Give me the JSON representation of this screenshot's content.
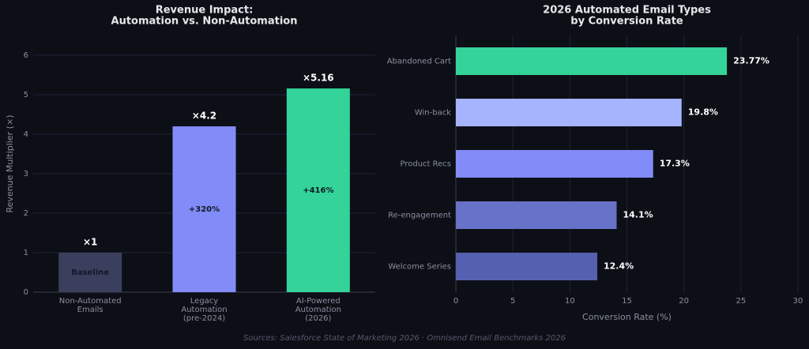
{
  "chart_data": [
    {
      "type": "bar",
      "title": [
        "Revenue Impact:",
        "Automation vs. Non-Automation"
      ],
      "y_label": "Revenue Multiplier (×)",
      "categories": [
        "Non-Automated\nEmails",
        "Legacy\nAutomation\n(pre-2024)",
        "AI-Powered\nAutomation\n(2026)"
      ],
      "values": [
        1,
        4.2,
        5.16
      ],
      "value_labels": [
        "×1",
        "×4.2",
        "×5.16"
      ],
      "inner_labels": [
        "Baseline",
        "+320%",
        "+416%"
      ],
      "colors": [
        "#3b3f5e",
        "#818cf8",
        "#34d399"
      ],
      "ylim": [
        0,
        6.5
      ],
      "yticks": [
        0,
        1,
        2,
        3,
        4,
        5,
        6
      ],
      "grid": true
    },
    {
      "type": "barh",
      "title": [
        "2026 Automated Email Types",
        "by Conversion Rate"
      ],
      "x_label": "Conversion Rate (%)",
      "categories": [
        "Abandoned Cart",
        "Win-back",
        "Product Recs",
        "Re-engagement",
        "Welcome Series"
      ],
      "values": [
        23.77,
        19.8,
        17.3,
        14.1,
        12.4
      ],
      "value_labels": [
        "23.77%",
        "19.8%",
        "17.3%",
        "14.1%",
        "12.4%"
      ],
      "colors": [
        "#34d399",
        "#a5b4fc",
        "#818cf8",
        "#6872c8",
        "#5561b0"
      ],
      "xlim": [
        0,
        30
      ],
      "xticks": [
        0,
        5,
        10,
        15,
        20,
        25,
        30
      ],
      "grid": true
    }
  ],
  "footer": "Sources: Salesforce State of Marketing 2026 · Omnisend Email Benchmarks 2026"
}
